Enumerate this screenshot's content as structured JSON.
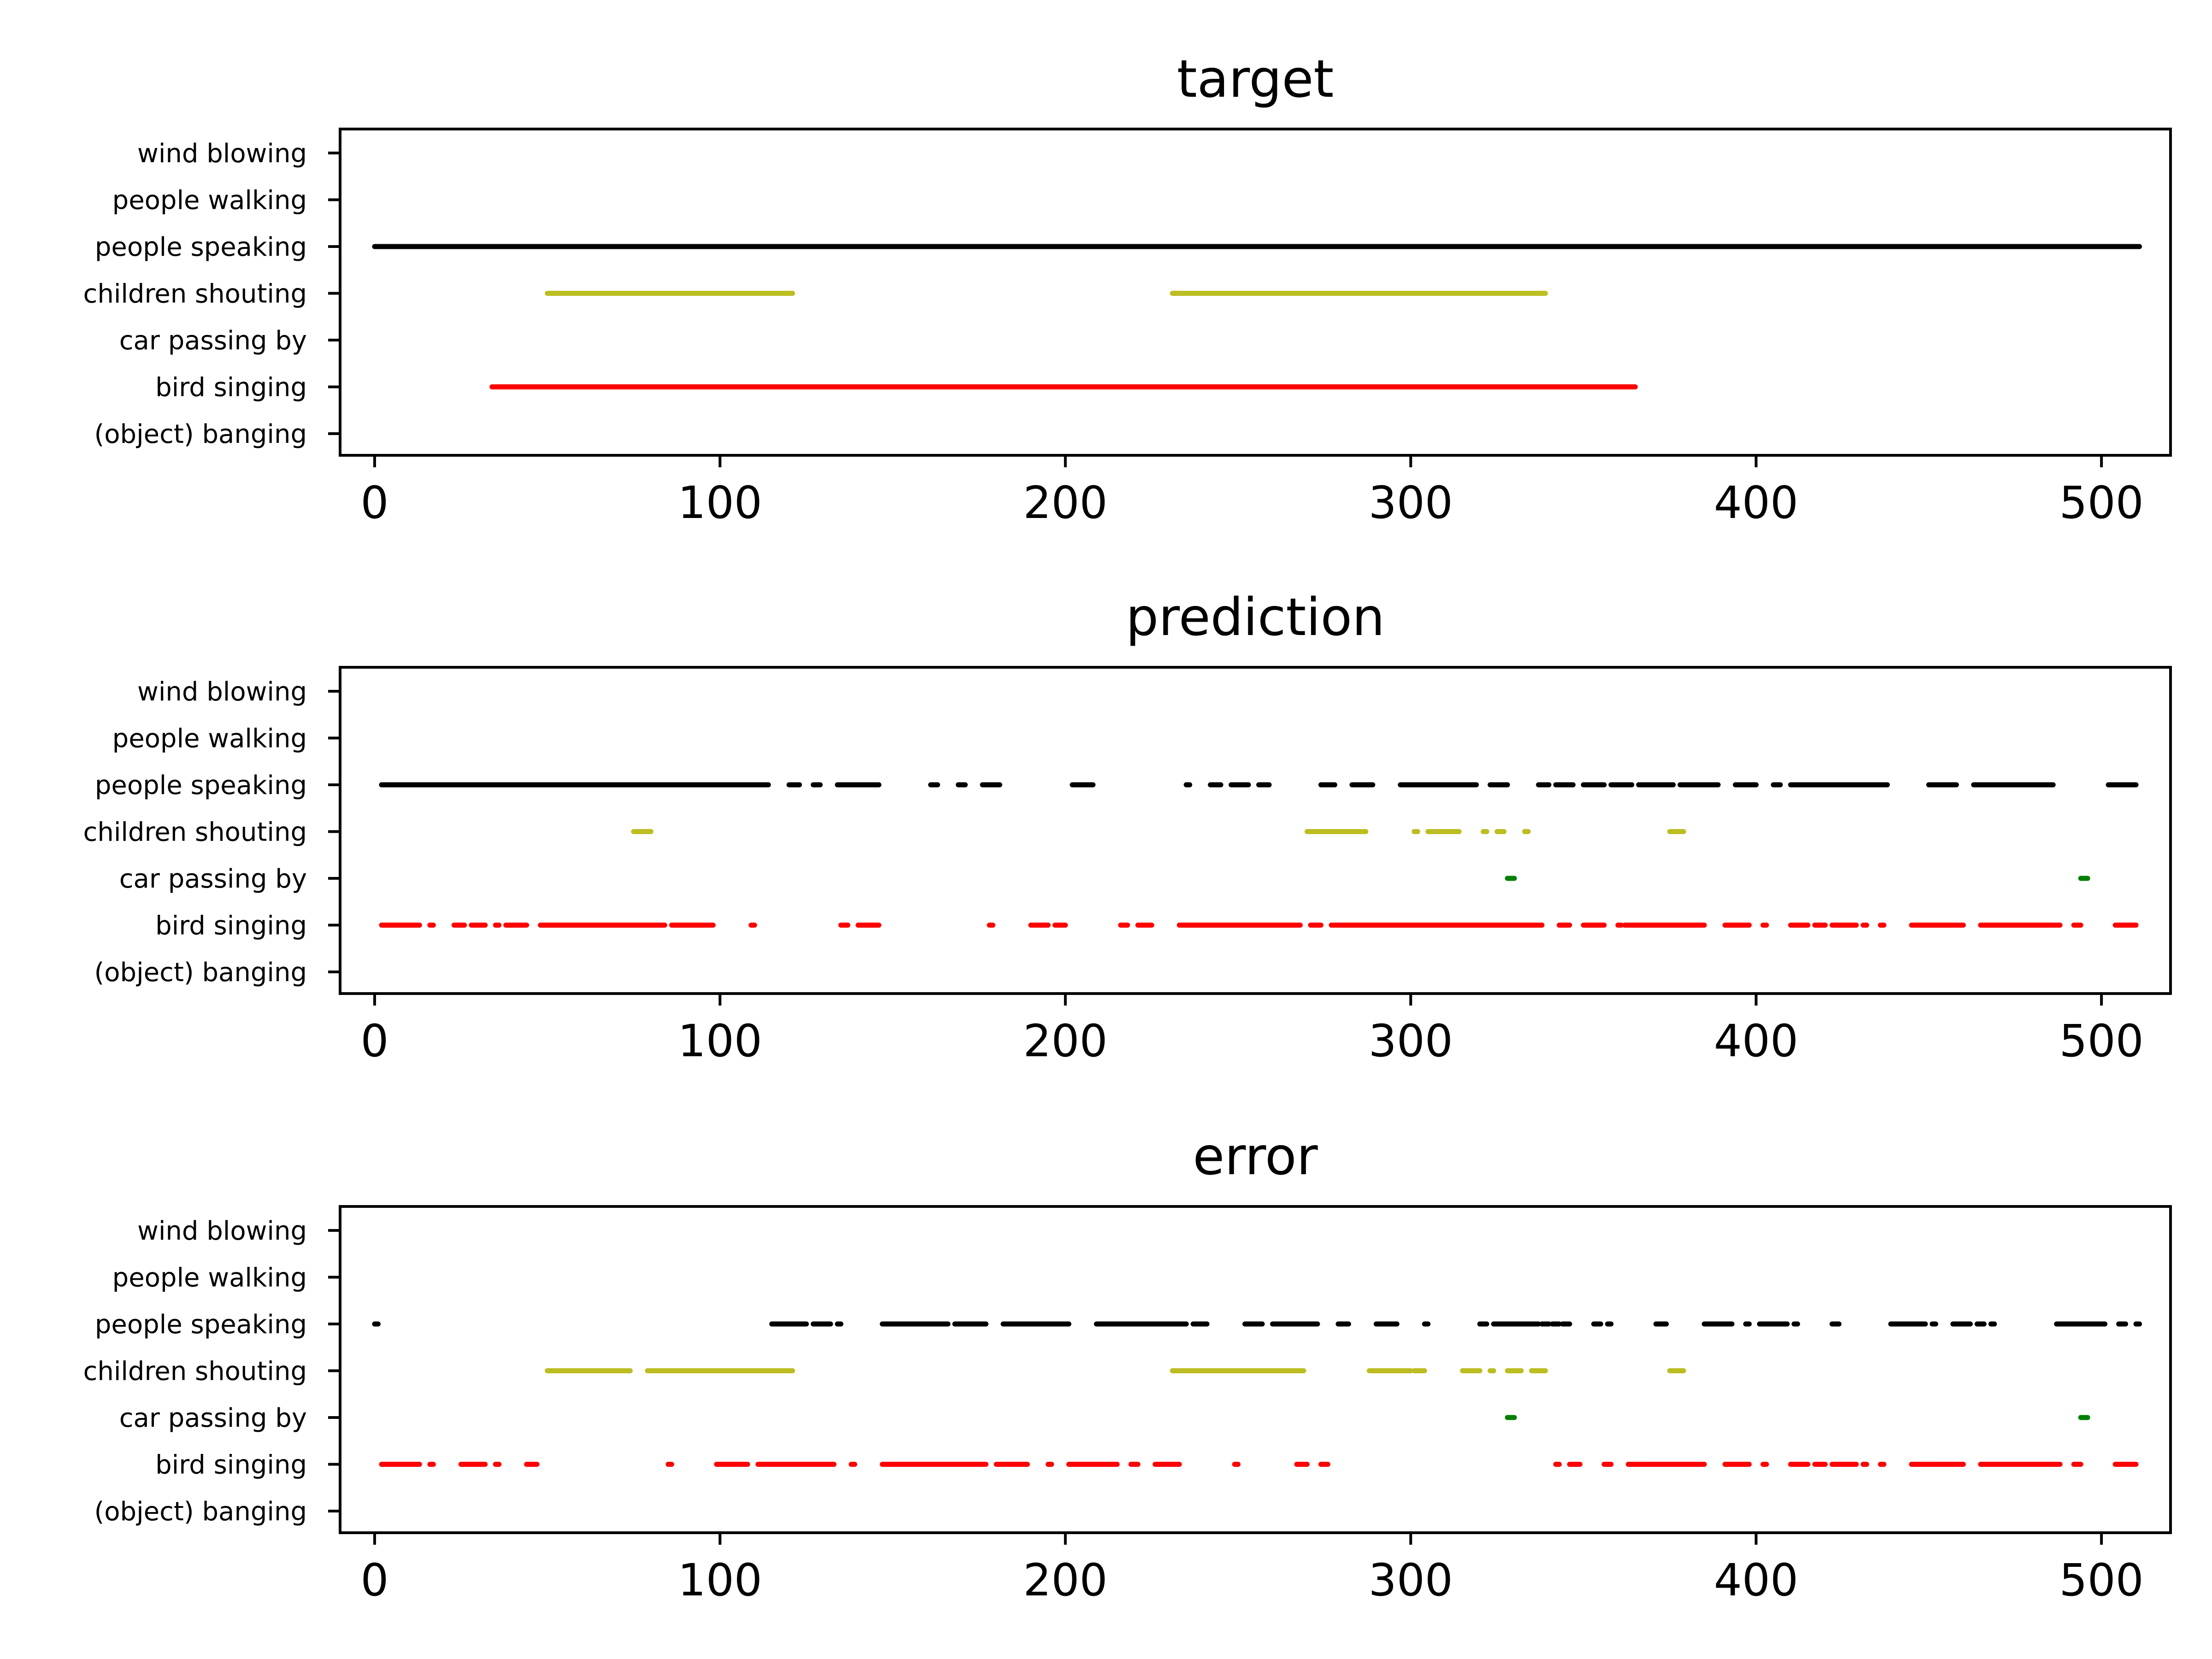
{
  "chart_data": [
    {
      "type": "scatter",
      "title": "target",
      "xlim": [
        -10,
        520
      ],
      "xticks": [
        0,
        100,
        200,
        300,
        400,
        500
      ],
      "categories": [
        "wind blowing",
        "people walking",
        "people speaking",
        "children shouting",
        "car passing by",
        "bird singing",
        "(object) banging"
      ],
      "grid": false,
      "series": [
        {
          "category": "people speaking",
          "color": "#000000",
          "segments": [
            [
              0,
              511
            ]
          ]
        },
        {
          "category": "children shouting",
          "color": "#bcbd22",
          "segments": [
            [
              50,
              121
            ],
            [
              231,
              339
            ]
          ]
        },
        {
          "category": "bird singing",
          "color": "#ff0000",
          "segments": [
            [
              34,
              365
            ]
          ]
        }
      ]
    },
    {
      "type": "scatter",
      "title": "prediction",
      "xlim": [
        -10,
        520
      ],
      "xticks": [
        0,
        100,
        200,
        300,
        400,
        500
      ],
      "categories": [
        "wind blowing",
        "people walking",
        "people speaking",
        "children shouting",
        "car passing by",
        "bird singing",
        "(object) banging"
      ],
      "grid": false,
      "series": [
        {
          "category": "people speaking",
          "color": "#000000",
          "segments": [
            [
              2,
              114
            ],
            [
              120,
              123
            ],
            [
              127,
              129
            ],
            [
              134,
              146
            ],
            [
              161,
              163
            ],
            [
              169,
              171
            ],
            [
              176,
              181
            ],
            [
              202,
              208
            ],
            [
              235,
              236
            ],
            [
              242,
              245
            ],
            [
              248,
              253
            ],
            [
              256,
              259
            ],
            [
              274,
              278
            ],
            [
              283,
              289
            ],
            [
              297,
              319
            ],
            [
              323,
              328
            ],
            [
              337,
              340
            ],
            [
              342,
              347
            ],
            [
              350,
              356
            ],
            [
              358,
              364
            ],
            [
              366,
              376
            ],
            [
              378,
              389
            ],
            [
              394,
              400
            ],
            [
              405,
              407
            ],
            [
              410,
              438
            ],
            [
              450,
              458
            ],
            [
              463,
              486
            ],
            [
              502,
              510
            ]
          ]
        },
        {
          "category": "children shouting",
          "color": "#bcbd22",
          "segments": [
            [
              75,
              80
            ],
            [
              270,
              287
            ],
            [
              301,
              302
            ],
            [
              305,
              314
            ],
            [
              321,
              322
            ],
            [
              325,
              327
            ],
            [
              333,
              334
            ],
            [
              375,
              379
            ]
          ]
        },
        {
          "category": "car passing by",
          "color": "#008000",
          "segments": [
            [
              328,
              330
            ],
            [
              494,
              496
            ]
          ]
        },
        {
          "category": "bird singing",
          "color": "#ff0000",
          "segments": [
            [
              2,
              13
            ],
            [
              16,
              17
            ],
            [
              23,
              26
            ],
            [
              28,
              32
            ],
            [
              35,
              36
            ],
            [
              38,
              44
            ],
            [
              48,
              84
            ],
            [
              86,
              98
            ],
            [
              109,
              110
            ],
            [
              135,
              137
            ],
            [
              140,
              146
            ],
            [
              178,
              179
            ],
            [
              190,
              195
            ],
            [
              197,
              200
            ],
            [
              216,
              218
            ],
            [
              221,
              225
            ],
            [
              233,
              268
            ],
            [
              271,
              274
            ],
            [
              277,
              338
            ],
            [
              343,
              346
            ],
            [
              350,
              356
            ],
            [
              360,
              361
            ],
            [
              362,
              385
            ],
            [
              391,
              398
            ],
            [
              402,
              403
            ],
            [
              410,
              415
            ],
            [
              417,
              420
            ],
            [
              422,
              429
            ],
            [
              431,
              432
            ],
            [
              436,
              437
            ],
            [
              445,
              460
            ],
            [
              465,
              488
            ],
            [
              492,
              494
            ],
            [
              504,
              510
            ]
          ]
        }
      ]
    },
    {
      "type": "scatter",
      "title": "error",
      "xlim": [
        -10,
        520
      ],
      "xticks": [
        0,
        100,
        200,
        300,
        400,
        500
      ],
      "categories": [
        "wind blowing",
        "people walking",
        "people speaking",
        "children shouting",
        "car passing by",
        "bird singing",
        "(object) banging"
      ],
      "grid": false,
      "series": [
        {
          "category": "people speaking",
          "color": "#000000",
          "segments": [
            [
              0,
              1
            ],
            [
              115,
              125
            ],
            [
              127,
              132
            ],
            [
              134,
              135
            ],
            [
              147,
              166
            ],
            [
              168,
              177
            ],
            [
              182,
              201
            ],
            [
              209,
              235
            ],
            [
              237,
              241
            ],
            [
              252,
              257
            ],
            [
              260,
              273
            ],
            [
              279,
              282
            ],
            [
              290,
              296
            ],
            [
              304,
              305
            ],
            [
              320,
              322
            ],
            [
              324,
              337
            ],
            [
              338,
              340
            ],
            [
              341,
              343
            ],
            [
              344,
              346
            ],
            [
              353,
              355
            ],
            [
              357,
              358
            ],
            [
              371,
              374
            ],
            [
              385,
              393
            ],
            [
              397,
              398
            ],
            [
              401,
              409
            ],
            [
              411,
              412
            ],
            [
              422,
              424
            ],
            [
              439,
              449
            ],
            [
              451,
              452
            ],
            [
              457,
              462
            ],
            [
              464,
              466
            ],
            [
              468,
              469
            ],
            [
              487,
              501
            ],
            [
              505,
              507
            ],
            [
              510,
              511
            ]
          ]
        },
        {
          "category": "children shouting",
          "color": "#bcbd22",
          "segments": [
            [
              50,
              74
            ],
            [
              79,
              121
            ],
            [
              231,
              269
            ],
            [
              288,
              300
            ],
            [
              301,
              304
            ],
            [
              315,
              320
            ],
            [
              323,
              324
            ],
            [
              328,
              332
            ],
            [
              335,
              339
            ],
            [
              375,
              379
            ]
          ]
        },
        {
          "category": "car passing by",
          "color": "#008000",
          "segments": [
            [
              328,
              330
            ],
            [
              494,
              496
            ]
          ]
        },
        {
          "category": "bird singing",
          "color": "#ff0000",
          "segments": [
            [
              2,
              13
            ],
            [
              16,
              17
            ],
            [
              25,
              32
            ],
            [
              35,
              36
            ],
            [
              44,
              47
            ],
            [
              85,
              86
            ],
            [
              99,
              108
            ],
            [
              111,
              133
            ],
            [
              138,
              139
            ],
            [
              147,
              177
            ],
            [
              180,
              189
            ],
            [
              195,
              196
            ],
            [
              201,
              215
            ],
            [
              219,
              221
            ],
            [
              226,
              233
            ],
            [
              249,
              250
            ],
            [
              267,
              270
            ],
            [
              274,
              276
            ],
            [
              342,
              343
            ],
            [
              346,
              349
            ],
            [
              356,
              358
            ],
            [
              363,
              385
            ],
            [
              391,
              398
            ],
            [
              402,
              403
            ],
            [
              410,
              415
            ],
            [
              417,
              420
            ],
            [
              422,
              429
            ],
            [
              431,
              432
            ],
            [
              436,
              437
            ],
            [
              445,
              460
            ],
            [
              465,
              488
            ],
            [
              492,
              494
            ],
            [
              504,
              510
            ]
          ]
        }
      ]
    }
  ]
}
